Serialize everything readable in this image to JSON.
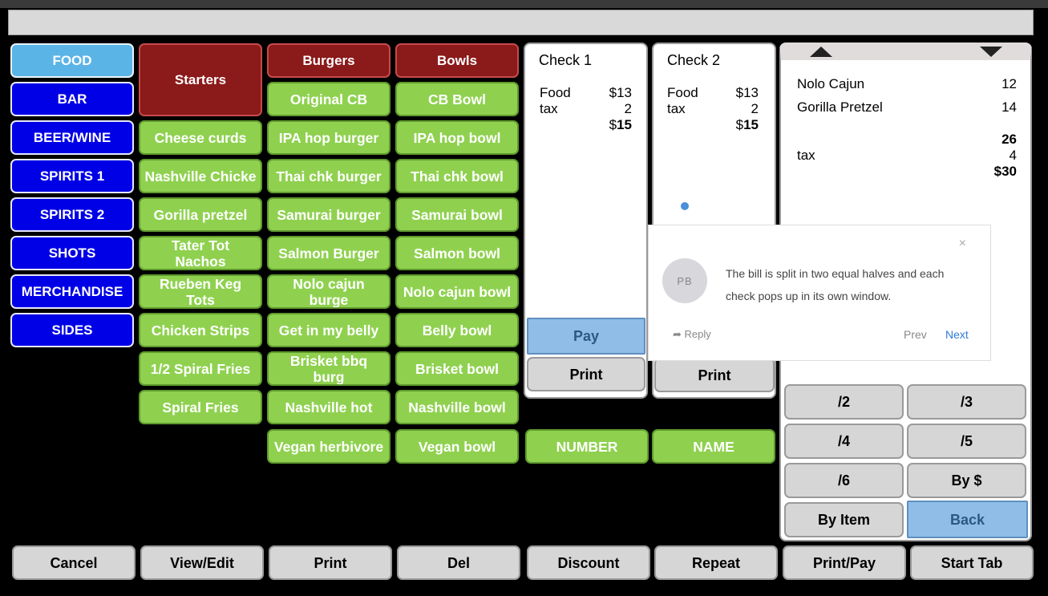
{
  "categories": [
    "FOOD",
    "BAR",
    "BEER/WINE",
    "SPIRITS 1",
    "SPIRITS 2",
    "SHOTS",
    "MERCHANDISE",
    "SIDES"
  ],
  "starters": {
    "header": "Starters",
    "items": [
      "Cheese curds",
      "Nashville Chicke",
      "Gorilla pretzel",
      "Tater  Tot\nNachos",
      "Rueben Keg\nTots",
      "Chicken Strips",
      "1/2 Spiral Fries",
      "Spiral Fries"
    ]
  },
  "burgers": {
    "header": "Burgers",
    "items": [
      "Original CB",
      "IPA hop burger",
      "Thai chk burger",
      "Samurai burger",
      "Salmon Burger",
      "Nolo cajun\nburge",
      "Get in my belly",
      "Brisket bbq\nburg",
      "Nashville hot",
      "Vegan herbivore"
    ]
  },
  "bowls": {
    "header": "Bowls",
    "items": [
      "CB Bowl",
      "IPA hop bowl",
      "Thai chk bowl",
      "Samurai bowl",
      "Salmon bowl",
      "Nolo cajun bowl",
      "Belly bowl",
      "Brisket bowl",
      "Nashville bowl",
      "Vegan bowl"
    ]
  },
  "check1": {
    "title": "Check 1",
    "food_label": "Food",
    "food_value": "$13",
    "tax_label": "tax",
    "tax_value": "2",
    "total_prefix": "$",
    "total": "15",
    "pay_label": "Pay",
    "print_label": "Print"
  },
  "check2": {
    "title": "Check 2",
    "food_label": "Food",
    "food_value": "$13",
    "tax_label": "tax",
    "tax_value": "2",
    "total_prefix": "$",
    "total": "15",
    "print_label": "Print"
  },
  "order": {
    "items": [
      {
        "name": "Nolo Cajun",
        "price": "12"
      },
      {
        "name": "Gorilla Pretzel",
        "price": "14"
      }
    ],
    "subtotal": "26",
    "tax_label": "tax",
    "tax": "4",
    "total": "$30"
  },
  "popup": {
    "avatar": "PB",
    "text": "The bill is split in two equal halves and each check pops up in its own window.",
    "close": "×",
    "reply": "Reply",
    "prev": "Prev",
    "next": "Next"
  },
  "number_label": "NUMBER",
  "name_label": "NAME",
  "split": [
    "/2",
    "/3",
    "/4",
    "/5",
    "/6",
    "By $",
    "By Item",
    "Back"
  ],
  "bottom": [
    "Cancel",
    "View/Edit",
    "Print",
    "Del",
    "Discount",
    "Repeat",
    "Print/Pay",
    "Start Tab"
  ]
}
